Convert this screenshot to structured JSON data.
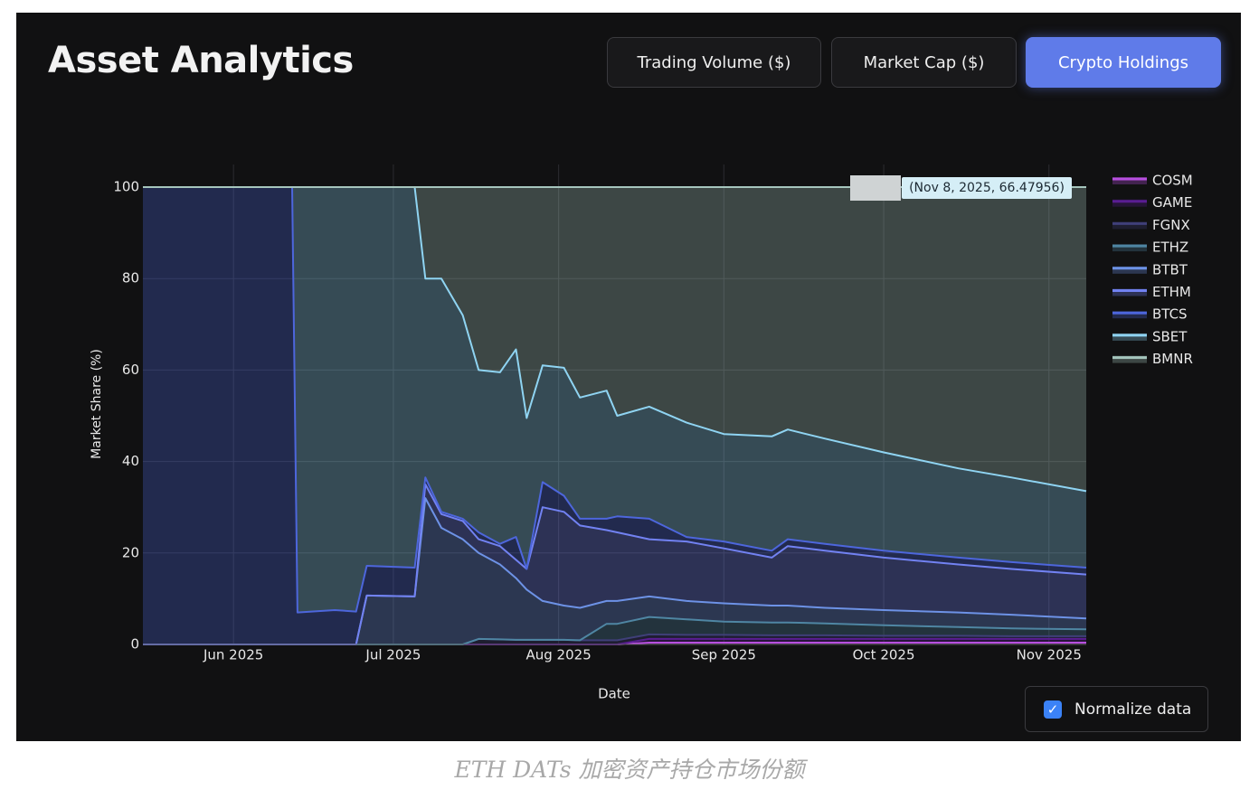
{
  "header": {
    "title": "Asset Analytics",
    "tabs": [
      "Trading Volume ($)",
      "Market Cap ($)",
      "Crypto Holdings"
    ],
    "active_tab": 2
  },
  "chart_data": {
    "type": "area",
    "stacked": true,
    "x_label": "Date",
    "y_label": "Market Share (%)",
    "annotation": "(Nov 8, 2025, 66.47956)",
    "grid": true,
    "legend": "right",
    "x": [
      "2025-05-15",
      "2025-06-12",
      "2025-06-13",
      "2025-06-20",
      "2025-06-24",
      "2025-06-26",
      "2025-07-05",
      "2025-07-07",
      "2025-07-10",
      "2025-07-14",
      "2025-07-17",
      "2025-07-21",
      "2025-07-24",
      "2025-07-26",
      "2025-07-29",
      "2025-08-02",
      "2025-08-05",
      "2025-08-10",
      "2025-08-12",
      "2025-08-18",
      "2025-08-25",
      "2025-09-01",
      "2025-09-10",
      "2025-09-13",
      "2025-09-20",
      "2025-10-01",
      "2025-10-15",
      "2025-10-25",
      "2025-11-08"
    ],
    "xlim": [
      "2025-05-15",
      "2025-11-08"
    ],
    "xticks": [
      {
        "value": "2025-06-01",
        "label": "Jun 2025"
      },
      {
        "value": "2025-07-01",
        "label": "Jul 2025"
      },
      {
        "value": "2025-08-01",
        "label": "Aug 2025"
      },
      {
        "value": "2025-09-01",
        "label": "Sep 2025"
      },
      {
        "value": "2025-10-01",
        "label": "Oct 2025"
      },
      {
        "value": "2025-11-01",
        "label": "Nov 2025"
      }
    ],
    "ylim": [
      0,
      100
    ],
    "yticks": [
      0,
      20,
      40,
      60,
      80,
      100
    ],
    "series": [
      {
        "name": "COSM",
        "color": "#b84fe0",
        "values": [
          0,
          0,
          0,
          0,
          0,
          0,
          0,
          0,
          0,
          0,
          0,
          0,
          0,
          0,
          0,
          0,
          0,
          0,
          0,
          0.4,
          0.4,
          0.4,
          0.4,
          0.4,
          0.4,
          0.4,
          0.4,
          0.4,
          0.4
        ]
      },
      {
        "name": "GAME",
        "color": "#5a1d92",
        "values": [
          0,
          0,
          0,
          0,
          0,
          0,
          0,
          0,
          0,
          0,
          0,
          0,
          0,
          0,
          0,
          0,
          0,
          0,
          0,
          0.8,
          0.8,
          0.8,
          0.8,
          0.8,
          0.8,
          0.8,
          0.8,
          0.8,
          0.8
        ]
      },
      {
        "name": "FGNX",
        "color": "#3f3f78",
        "values": [
          0,
          0,
          0,
          0,
          0,
          0,
          0,
          0,
          0,
          0,
          1.2,
          1.1,
          1,
          1,
          1,
          1,
          0.9,
          0.9,
          0.9,
          1,
          0.9,
          0.9,
          0.8,
          0.8,
          0.8,
          0.7,
          0.7,
          0.6,
          0.6
        ]
      },
      {
        "name": "ETHZ",
        "color": "#4f86a3",
        "values": [
          0,
          0,
          0,
          0,
          0,
          0,
          0,
          0,
          0,
          0,
          0,
          0,
          0,
          0,
          0,
          0,
          0,
          3.6,
          3.6,
          3.8,
          3.4,
          2.9,
          2.8,
          2.8,
          2.6,
          2.3,
          1.9,
          1.7,
          1.5
        ]
      },
      {
        "name": "BTBT",
        "color": "#6d92e6",
        "values": [
          0,
          0,
          0,
          0,
          0,
          10.7,
          10.5,
          32,
          25.5,
          23,
          18.8,
          16.4,
          13.5,
          11,
          8.5,
          7.5,
          7.1,
          5,
          5,
          4.5,
          4,
          4,
          3.7,
          3.7,
          3.4,
          3.3,
          3.2,
          3,
          2.4
        ]
      },
      {
        "name": "ETHM",
        "color": "#7282f2",
        "values": [
          0,
          0,
          0,
          0,
          0,
          0,
          0,
          3,
          3,
          4,
          3,
          4,
          4,
          4.5,
          20.5,
          20.5,
          18,
          15.5,
          15,
          12.5,
          13,
          12,
          10.5,
          13,
          12.5,
          11.5,
          10.5,
          10,
          9.6
        ]
      },
      {
        "name": "BTCS",
        "color": "#4d66dc",
        "values": [
          100,
          100,
          7,
          7.5,
          7.2,
          6.5,
          6.3,
          1.5,
          0.5,
          0.5,
          1.5,
          0.5,
          5,
          0,
          5.5,
          3.5,
          1.5,
          2.5,
          3.5,
          4.5,
          1,
          1.5,
          1.5,
          1.5,
          1.5,
          1.5,
          1.5,
          1.5,
          1.5
        ]
      },
      {
        "name": "SBET",
        "color": "#8fd4f2",
        "values": [
          0,
          0,
          93,
          92.5,
          92.8,
          82.8,
          83.2,
          43.5,
          51,
          44.5,
          35.5,
          37.5,
          41,
          33,
          25.5,
          28,
          26.5,
          28,
          22,
          24.5,
          25,
          23.5,
          25,
          24,
          23,
          21.5,
          19.5,
          18.5,
          16.72044
        ]
      },
      {
        "name": "BMNR",
        "color": "#a6c6bd",
        "values": [
          0,
          0,
          0,
          0,
          0,
          0,
          0,
          20,
          20,
          28,
          40,
          40.5,
          35.5,
          50.5,
          39,
          39.5,
          46,
          44.5,
          50,
          48,
          51.5,
          54,
          54.5,
          53,
          55,
          58,
          61.5,
          63.5,
          66.47956
        ]
      }
    ]
  },
  "normalize": {
    "label": "Normalize data",
    "checked": true
  },
  "caption": "ETH DATs 加密资产持仓市场份额"
}
